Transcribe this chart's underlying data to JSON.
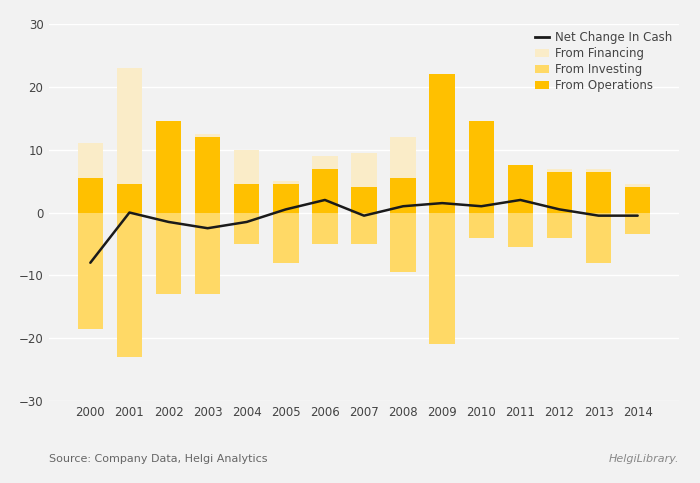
{
  "years": [
    2000,
    2001,
    2002,
    2003,
    2004,
    2005,
    2006,
    2007,
    2008,
    2009,
    2010,
    2011,
    2012,
    2013,
    2014
  ],
  "from_financing": [
    11,
    23,
    14.5,
    12.5,
    10,
    5,
    9,
    9.5,
    12,
    22,
    14.5,
    7.5,
    7,
    7,
    4.5
  ],
  "from_investing": [
    -18.5,
    -23,
    -13,
    -13,
    -5,
    -8,
    -5,
    -5,
    -9.5,
    -21,
    -4,
    -5.5,
    -4,
    -8,
    -3.5
  ],
  "from_operations": [
    5.5,
    4.5,
    14.5,
    12,
    4.5,
    4.5,
    7,
    4,
    5.5,
    22,
    14.5,
    7.5,
    6.5,
    6.5,
    4
  ],
  "net_change": [
    -8,
    0,
    -1.5,
    -2.5,
    -1.5,
    0.5,
    2,
    -0.5,
    1,
    1.5,
    1,
    2,
    0.5,
    -0.5,
    -0.5
  ],
  "color_financing": "#FAECC8",
  "color_investing": "#FFD966",
  "color_operations": "#FFC000",
  "color_net": "#1A1A1A",
  "background_color": "#F2F2F2",
  "grid_color": "#FFFFFF",
  "ylim": [
    -30,
    30
  ],
  "yticks": [
    -30,
    -20,
    -10,
    0,
    10,
    20,
    30
  ],
  "legend_labels": [
    "Net Change In Cash",
    "From Financing",
    "From Investing",
    "From Operations"
  ],
  "source_text": "Source: Company Data, Helgi Analytics"
}
